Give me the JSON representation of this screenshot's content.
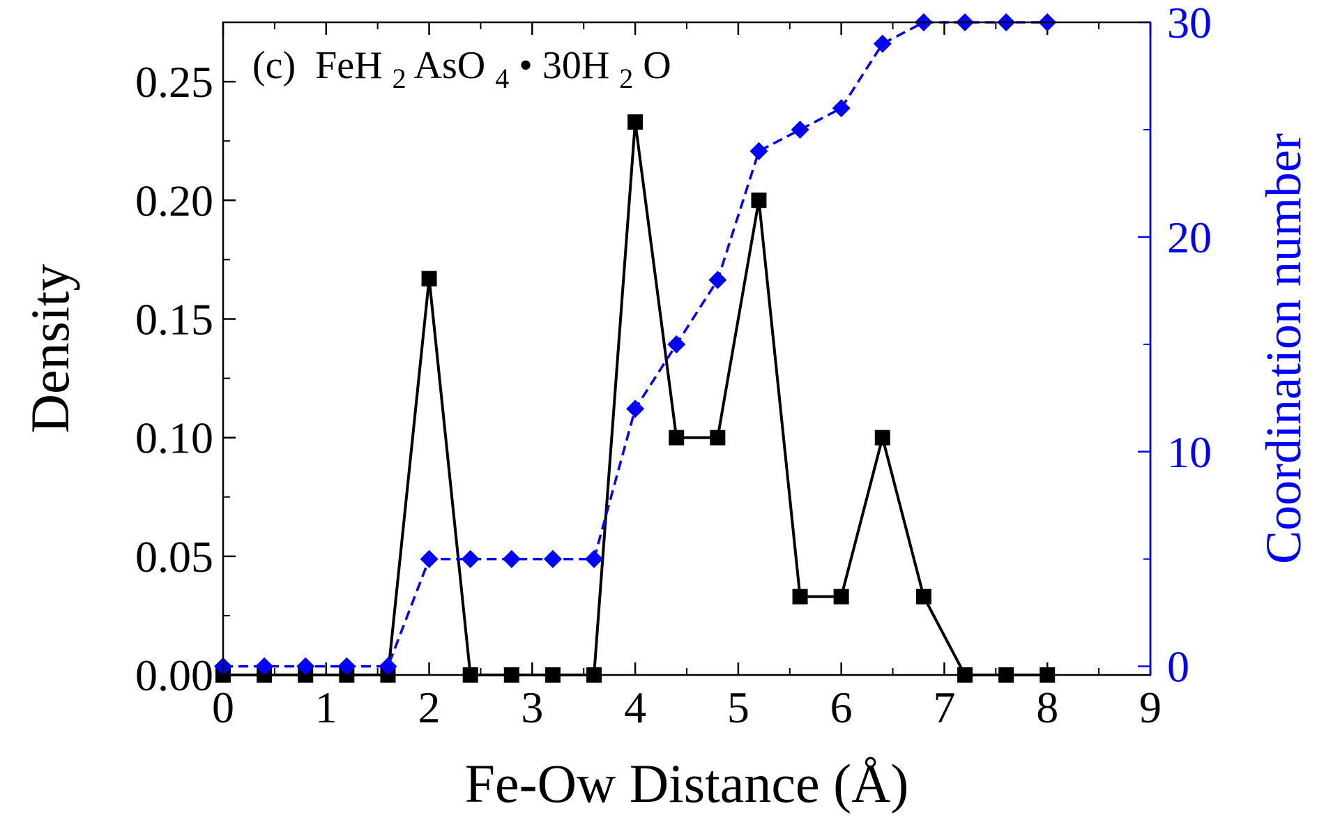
{
  "chart_data": {
    "type": "line",
    "panel_label": "(c)",
    "title_parts": {
      "fe": "FeH",
      "h_sub": "2",
      "aso": "AsO",
      "o_sub": "4",
      "dot": "•",
      "water": "30H",
      "w_sub": "2",
      "o": "O"
    },
    "xlabel": "Fe-Ow Distance (Å)",
    "ylabel": "Density",
    "y2label": "Coordination number",
    "xlim": [
      0,
      9
    ],
    "ylim": [
      0,
      0.275
    ],
    "y2lim": [
      -0.4,
      30.0
    ],
    "x_ticks": [
      "0",
      "1",
      "2",
      "3",
      "4",
      "5",
      "6",
      "7",
      "8",
      "9"
    ],
    "y_ticks": [
      "0.00",
      "0.05",
      "0.10",
      "0.15",
      "0.20",
      "0.25"
    ],
    "y2_ticks": [
      "0",
      "10",
      "20",
      "30"
    ],
    "colors": {
      "density": "#000000",
      "coordination": "#0000ff",
      "axis": "#000000"
    },
    "series": [
      {
        "name": "Density",
        "axis": "left",
        "marker": "square",
        "line_style": "solid",
        "x": [
          0,
          0.4,
          0.8,
          1.2,
          1.6,
          2.0,
          2.4,
          2.8,
          3.2,
          3.6,
          4.0,
          4.4,
          4.8,
          5.2,
          5.6,
          6.0,
          6.4,
          6.8,
          7.2,
          7.6,
          8.0
        ],
        "values": [
          0,
          0,
          0,
          0,
          0,
          0.167,
          0,
          0,
          0,
          0,
          0.233,
          0.1,
          0.1,
          0.2,
          0.033,
          0.033,
          0.1,
          0.033,
          0,
          0,
          0
        ]
      },
      {
        "name": "Coordination number",
        "axis": "right",
        "marker": "diamond",
        "line_style": "dash",
        "x": [
          0,
          0.4,
          0.8,
          1.2,
          1.6,
          2.0,
          2.4,
          2.8,
          3.2,
          3.6,
          4.0,
          4.4,
          4.8,
          5.2,
          5.6,
          6.0,
          6.4,
          6.8,
          7.2,
          7.6,
          8.0
        ],
        "values": [
          0,
          0,
          0,
          0,
          0,
          5,
          5,
          5,
          5,
          5,
          12,
          15,
          18,
          24,
          25,
          26,
          29,
          30,
          30,
          30,
          30
        ]
      }
    ]
  }
}
